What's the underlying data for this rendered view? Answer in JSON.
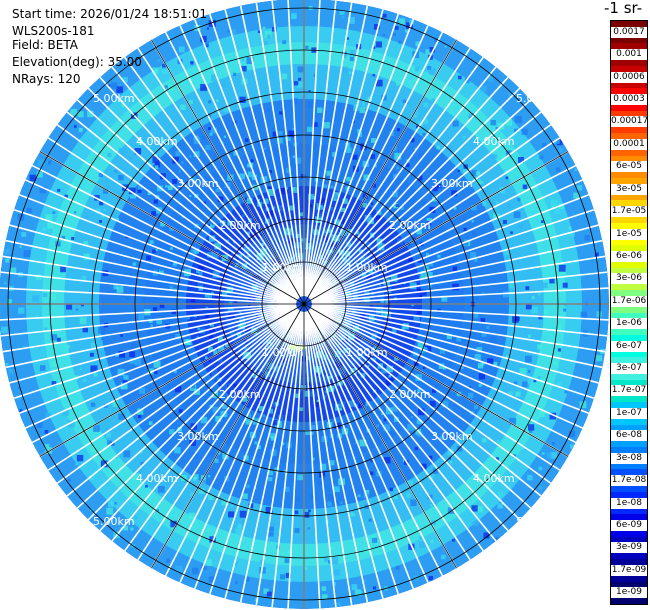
{
  "info": {
    "start_time": "Start time: 2026/01/24 18:51:01",
    "site": "WLS200s-181",
    "field": "Field: BETA",
    "elevation": "Elevation(deg): 35.00",
    "nrays": "NRays: 120"
  },
  "colorbar": {
    "unit_title": "-1 sr-",
    "labels": [
      "0.0017",
      "0.001",
      "0.0006",
      "0.0003",
      "0.00017",
      "0.0001",
      "6e-05",
      "3e-05",
      "1.7e-05",
      "1e-05",
      "6e-06",
      "3e-06",
      "1.7e-06",
      "1e-06",
      "6e-07",
      "3e-07",
      "1.7e-07",
      "1e-07",
      "6e-08",
      "3e-08",
      "1.7e-08",
      "1e-08",
      "6e-09",
      "3e-09",
      "1.7e-09",
      "1e-09"
    ],
    "colors": [
      "#7a0000",
      "#a00000",
      "#c80000",
      "#ff0000",
      "#ff3c00",
      "#ff6400",
      "#ff8c00",
      "#ffa500",
      "#ffd700",
      "#ffff00",
      "#e0ff00",
      "#c0ff40",
      "#80ff80",
      "#40ffc0",
      "#00ffe0",
      "#40f0e0",
      "#00e8c8",
      "#00c8ff",
      "#00a0ff",
      "#0080ff",
      "#0050ff",
      "#0028ff",
      "#0000e8",
      "#0000c0",
      "#000098",
      "#000070"
    ]
  },
  "range_rings": {
    "labels": [
      "1.00km",
      "2.00km",
      "3.00km",
      "4.00km",
      "5.00km"
    ]
  },
  "ppi": {
    "colors": {
      "background_dark": "#0a1ee6",
      "mid_blue": "#1e78f0",
      "light_blue": "#32b4f5",
      "cyan": "#3cdcf0",
      "aqua": "#46f0dc",
      "green_blob": "#b4ff6e",
      "ray_gap": "#ffffff",
      "grid": "#000000"
    }
  }
}
